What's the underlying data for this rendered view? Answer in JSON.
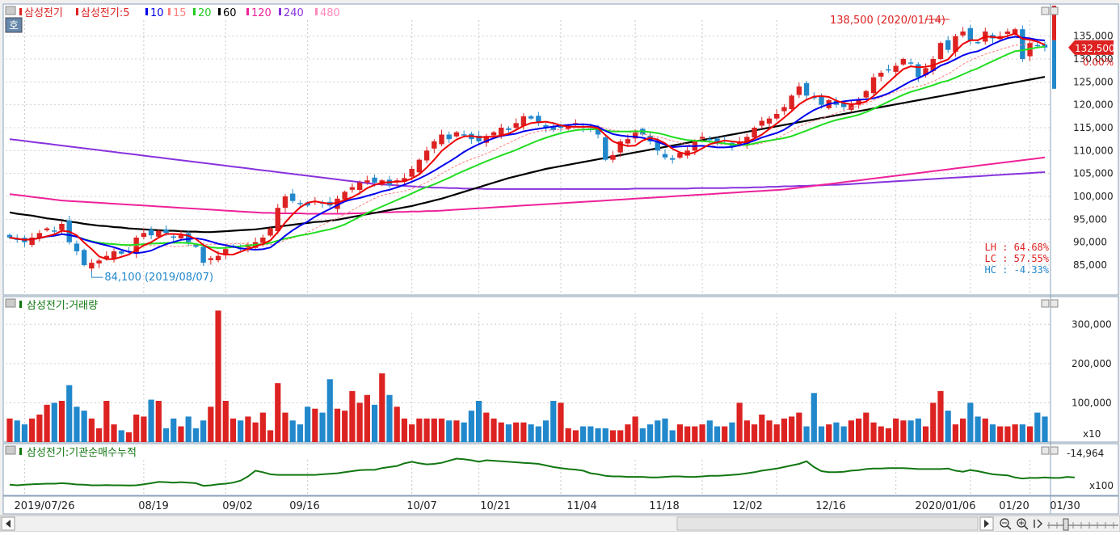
{
  "stock_name": "삼성전기",
  "price_legend": {
    "name": "삼성전기:5",
    "items": [
      {
        "label": "10",
        "color": "#0000ee"
      },
      {
        "label": "15",
        "color": "#ff8080"
      },
      {
        "label": "20",
        "color": "#22cc22"
      },
      {
        "label": "60",
        "color": "#000000"
      },
      {
        "label": "120",
        "color": "#ee2299"
      },
      {
        "label": "240",
        "color": "#8833dd"
      },
      {
        "label": "480",
        "color": "#ff88bb"
      }
    ]
  },
  "ho_label": "호",
  "volume_title": "삼성전기:거래량",
  "inst_title": "삼성전기:기관순매수누적",
  "high_label": "138,500 (2020/01/14)",
  "low_label": "84,100 (2019/08/07)",
  "current_price": "132,500",
  "change_pct": "0.00%",
  "stats": [
    "LH : 64.68%",
    "LC : 57.55%",
    "HC : -4.33%"
  ],
  "price_ticks": [
    "135,000",
    "130,000",
    "125,000",
    "120,000",
    "115,000",
    "110,000",
    "105,000",
    "100,000",
    "95,000",
    "90,000",
    "85,000"
  ],
  "volume_ticks": [
    "300,000",
    "200,000",
    "100,000"
  ],
  "volume_unit": "x10",
  "inst_top": "-14,964",
  "inst_unit": "x100",
  "date_labels": [
    "2019/07/26",
    "08/19",
    "09/02",
    "09/16",
    "10/07",
    "10/21",
    "11/04",
    "11/18",
    "12/02",
    "12/16",
    "2020/01/06",
    "01/20",
    "01/30"
  ],
  "colors": {
    "up": "#dd2222",
    "down": "#2288cc",
    "inst": "#117711",
    "ma5": "#ee0000",
    "ma10": "#0000ee",
    "ma20": "#22dd22",
    "ma60": "#000000",
    "ma120": "#ee2299",
    "ma240": "#8833dd"
  },
  "chart_data": {
    "type": "candlestick",
    "ylim_price": [
      82000,
      139000
    ],
    "ylim_volume": [
      0,
      350000
    ],
    "closes": [
      91000,
      90500,
      90000,
      91000,
      92000,
      93000,
      92500,
      94000,
      90000,
      88000,
      85000,
      85500,
      86000,
      87000,
      88000,
      87500,
      88000,
      91000,
      92000,
      91500,
      92500,
      92000,
      91000,
      91500,
      90000,
      89000,
      85500,
      86500,
      87000,
      88500,
      89000,
      88500,
      89500,
      90000,
      91000,
      93000,
      97500,
      100000,
      99000,
      98500,
      98000,
      99000,
      98500,
      98000,
      99500,
      101000,
      102000,
      103000,
      103500,
      103000,
      103500,
      102500,
      103500,
      104000,
      106000,
      108000,
      110000,
      112000,
      113500,
      112500,
      114000,
      113500,
      112500,
      112000,
      113000,
      114000,
      115000,
      114500,
      116000,
      117500,
      117000,
      116000,
      115000,
      114500,
      115000,
      115500,
      116000,
      115000,
      114500,
      113500,
      108000,
      109000,
      112000,
      112500,
      114000,
      113500,
      112000,
      110000,
      108500,
      108000,
      109500,
      110000,
      112000,
      113000,
      112500,
      111500,
      112000,
      111000,
      112000,
      113000,
      115000,
      116500,
      117000,
      118000,
      119500,
      122000,
      124000,
      122000,
      121500,
      120000,
      121000,
      120000,
      119500,
      120000,
      121000,
      123000,
      126000,
      127000,
      127500,
      128500,
      130000,
      129000,
      126000,
      128000,
      130000,
      133500,
      132000,
      135000,
      136000,
      134000,
      133500,
      136000,
      134500,
      135000,
      136000,
      136500,
      130000,
      133500,
      133000,
      132500
    ],
    "volume": [
      60000,
      55000,
      45000,
      60000,
      70000,
      95000,
      100000,
      105000,
      145000,
      90000,
      80000,
      60000,
      35000,
      105000,
      45000,
      30000,
      25000,
      70000,
      65000,
      108000,
      105000,
      35000,
      60000,
      40000,
      65000,
      35000,
      55000,
      90000,
      335000,
      105000,
      60000,
      55000,
      65000,
      50000,
      75000,
      30000,
      150000,
      75000,
      55000,
      45000,
      90000,
      85000,
      75000,
      160000,
      85000,
      80000,
      130000,
      100000,
      120000,
      95000,
      175000,
      120000,
      90000,
      60000,
      45000,
      60000,
      60000,
      60000,
      60000,
      55000,
      55000,
      50000,
      80000,
      105000,
      75000,
      60000,
      50000,
      45000,
      50000,
      50000,
      45000,
      40000,
      55000,
      105000,
      100000,
      35000,
      30000,
      40000,
      40000,
      35000,
      35000,
      30000,
      30000,
      45000,
      65000,
      35000,
      45000,
      55000,
      60000,
      30000,
      45000,
      40000,
      40000,
      45000,
      55000,
      40000,
      40000,
      50000,
      100000,
      55000,
      45000,
      70000,
      55000,
      45000,
      60000,
      65000,
      75000,
      40000,
      125000,
      40000,
      45000,
      50000,
      40000,
      55000,
      60000,
      75000,
      50000,
      40000,
      35000,
      60000,
      55000,
      55000,
      60000,
      40000,
      100000,
      130000,
      80000,
      45000,
      60000,
      100000,
      65000,
      60000,
      45000,
      40000,
      40000,
      45000,
      45000,
      40000,
      75000,
      65000
    ],
    "institutional_cumulative_x100": [
      -112000,
      -113000,
      -112000,
      -111000,
      -110500,
      -110000,
      -110000,
      -109000,
      -110000,
      -111500,
      -112000,
      -113000,
      -113000,
      -112500,
      -113000,
      -113000,
      -113500,
      -113000,
      -111000,
      -109000,
      -106500,
      -107000,
      -108000,
      -107000,
      -108000,
      -109000,
      -114000,
      -113000,
      -111000,
      -110000,
      -108000,
      -104000,
      -96000,
      -85000,
      -88000,
      -92000,
      -93000,
      -93000,
      -93000,
      -93000,
      -93000,
      -93000,
      -92000,
      -91000,
      -90000,
      -88000,
      -86000,
      -84000,
      -83500,
      -83500,
      -80000,
      -78000,
      -76000,
      -71000,
      -68000,
      -71000,
      -73000,
      -72000,
      -70000,
      -66000,
      -62000,
      -63000,
      -65000,
      -68000,
      -65000,
      -66000,
      -67000,
      -68000,
      -69000,
      -70000,
      -71000,
      -72000,
      -75000,
      -78000,
      -80000,
      -82000,
      -83000,
      -85000,
      -90000,
      -92000,
      -95000,
      -96000,
      -96000,
      -97000,
      -97000,
      -97000,
      -98000,
      -98000,
      -97000,
      -96000,
      -96000,
      -97000,
      -97000,
      -96000,
      -95000,
      -95000,
      -94000,
      -93000,
      -92000,
      -90000,
      -88000,
      -85000,
      -83000,
      -81000,
      -78000,
      -75000,
      -72000,
      -67000,
      -78000,
      -86000,
      -88000,
      -88000,
      -87000,
      -85000,
      -84000,
      -82000,
      -81000,
      -81000,
      -80000,
      -80000,
      -80000,
      -81000,
      -82000,
      -82000,
      -82000,
      -82000,
      -81000,
      -85000,
      -87000,
      -84000,
      -86000,
      -89000,
      -92000,
      -93000,
      -94000,
      -98000,
      -100000,
      -99000,
      -99000,
      -98000,
      -99000,
      -99000,
      -97000,
      -98000
    ],
    "ma60": [
      96500,
      96200,
      96000,
      95800,
      95500,
      95200,
      95000,
      94800,
      94500,
      94300,
      94000,
      93800,
      93600,
      93500,
      93300,
      93200,
      93000,
      92900,
      92800,
      92700,
      92600,
      92500,
      92500,
      92400,
      92300,
      92300,
      92200,
      92200,
      92300,
      92400,
      92500,
      92600,
      92700,
      92800,
      93000,
      93200,
      93400,
      93600,
      93800,
      94000,
      94200,
      94400,
      94500,
      94700,
      94900,
      95200,
      95500,
      95800,
      96100,
      96400,
      96700,
      97000,
      97300,
      97600,
      97900,
      98300,
      98700,
      99100,
      99500,
      100000,
      100500,
      101000,
      101500,
      102000,
      102500,
      103000,
      103500,
      104000,
      104400,
      104800,
      105200,
      105600,
      106000,
      106300,
      106600,
      106900,
      107200,
      107500,
      107800,
      108100,
      108400,
      108700,
      109000,
      109300,
      109600,
      109900,
      110200,
      110500,
      110800,
      111100,
      111400,
      111700,
      112000,
      112300,
      112600,
      112900,
      113200,
      113500,
      113800,
      114100,
      114400,
      114700,
      115000,
      115300,
      115600,
      115900,
      116200,
      116500,
      116800,
      117100,
      117400,
      117700,
      118000,
      118300,
      118600,
      118900,
      119200,
      119500,
      119800,
      120100,
      120400,
      120700,
      121000,
      121300,
      121600,
      121900,
      122200,
      122500,
      122800,
      123100,
      123400,
      123700,
      124000,
      124300,
      124600,
      124900,
      125200,
      125500,
      125800,
      126100
    ],
    "ma120": [
      100500,
      100300,
      100100,
      99900,
      99700,
      99500,
      99300,
      99100,
      99000,
      98900,
      98800,
      98700,
      98600,
      98500,
      98400,
      98300,
      98200,
      98100,
      98000,
      97900,
      97800,
      97700,
      97600,
      97500,
      97400,
      97300,
      97200,
      97100,
      97000,
      96900,
      96800,
      96700,
      96600,
      96500,
      96400,
      96400,
      96300,
      96300,
      96300,
      96300,
      96200,
      96200,
      96200,
      96200,
      96200,
      96200,
      96300,
      96300,
      96400,
      96400,
      96500,
      96500,
      96600,
      96600,
      96700,
      96700,
      96800,
      96800,
      96900,
      97000,
      97100,
      97200,
      97300,
      97400,
      97500,
      97600,
      97700,
      97800,
      97900,
      98000,
      98100,
      98200,
      98300,
      98400,
      98500,
      98600,
      98700,
      98800,
      98900,
      99000,
      99100,
      99200,
      99300,
      99400,
      99500,
      99600,
      99700,
      99800,
      99900,
      100000,
      100100,
      100200,
      100300,
      100400,
      100500,
      100600,
      100700,
      100800,
      100900,
      101000,
      101100,
      101200,
      101300,
      101400,
      101500,
      101700,
      101900,
      102100,
      102300,
      102500,
      102700,
      102900,
      103100,
      103300,
      103500,
      103700,
      103900,
      104100,
      104300,
      104500,
      104700,
      104900,
      105100,
      105300,
      105500,
      105700,
      105900,
      106100,
      106300,
      106500,
      106700,
      106900,
      107100,
      107300,
      107500,
      107700,
      107900,
      108100,
      108300,
      108500
    ],
    "ma240": [
      112500,
      112300,
      112100,
      111900,
      111700,
      111500,
      111300,
      111100,
      110900,
      110700,
      110500,
      110300,
      110100,
      109900,
      109700,
      109500,
      109300,
      109100,
      108900,
      108700,
      108500,
      108300,
      108100,
      107900,
      107700,
      107500,
      107300,
      107100,
      106900,
      106700,
      106500,
      106300,
      106100,
      105900,
      105700,
      105500,
      105300,
      105100,
      104900,
      104700,
      104500,
      104300,
      104100,
      103900,
      103700,
      103500,
      103300,
      103100,
      102900,
      102700,
      102600,
      102500,
      102400,
      102300,
      102200,
      102100,
      102000,
      101900,
      101900,
      101800,
      101800,
      101700,
      101700,
      101700,
      101600,
      101600,
      101600,
      101600,
      101600,
      101600,
      101600,
      101600,
      101600,
      101600,
      101600,
      101600,
      101600,
      101600,
      101600,
      101600,
      101600,
      101600,
      101600,
      101600,
      101700,
      101700,
      101700,
      101700,
      101700,
      101700,
      101700,
      101700,
      101800,
      101800,
      101800,
      101800,
      101800,
      101900,
      101900,
      101900,
      102000,
      102000,
      102100,
      102100,
      102200,
      102200,
      102300,
      102300,
      102400,
      102400,
      102500,
      102500,
      102600,
      102700,
      102800,
      102900,
      103000,
      103100,
      103200,
      103300,
      103400,
      103500,
      103600,
      103700,
      103800,
      103900,
      104000,
      104100,
      104200,
      104300,
      104400,
      104500,
      104600,
      104700,
      104800,
      104900,
      105000,
      105100,
      105200,
      105300
    ]
  }
}
